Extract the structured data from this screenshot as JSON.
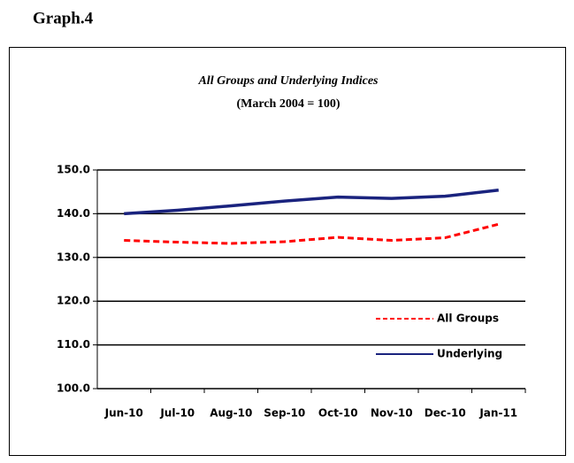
{
  "heading": "Graph.4",
  "chart_data": {
    "type": "line",
    "title": "All Groups and Underlying Indices",
    "subtitle": "(March 2004 = 100)",
    "categories": [
      "Jun-10",
      "Jul-10",
      "Aug-10",
      "Sep-10",
      "Oct-10",
      "Nov-10",
      "Dec-10",
      "Jan-11"
    ],
    "series": [
      {
        "name": "All Groups",
        "color": "#ff0000",
        "line_style": "dashed",
        "values": [
          133.9,
          133.5,
          133.2,
          133.6,
          134.6,
          133.9,
          134.5,
          137.6
        ]
      },
      {
        "name": "Underlying",
        "color": "#1a237e",
        "line_style": "solid",
        "values": [
          140.0,
          140.8,
          141.8,
          142.9,
          143.8,
          143.5,
          144.0,
          145.4
        ]
      }
    ],
    "ylim": [
      100,
      150
    ],
    "yticks": [
      {
        "value": 100,
        "label": "100.0"
      },
      {
        "value": 110,
        "label": "110.0"
      },
      {
        "value": 120,
        "label": "120.0"
      },
      {
        "value": 130,
        "label": "130.0"
      },
      {
        "value": 140,
        "label": "140.0"
      },
      {
        "value": 150,
        "label": "150.0"
      }
    ],
    "grid": true,
    "legend": "lower right"
  }
}
